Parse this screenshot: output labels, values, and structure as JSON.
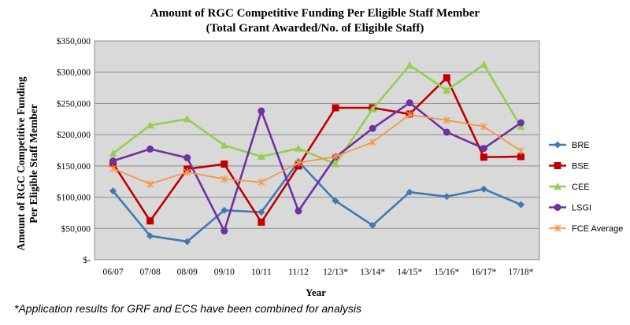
{
  "chart_data": {
    "type": "line",
    "title_lines": [
      "Amount of RGC Competitive Funding Per Eligible Staff Member",
      "(Total Grant Awarded/No. of Eligible Staff)"
    ],
    "xlabel": "Year",
    "ylabel_lines": [
      "Amount of RGC Competitive Funding",
      "Per Eligible Staff Member"
    ],
    "ylim": [
      0,
      350000
    ],
    "y_ticks": [
      "$-",
      "$50,000",
      "$100,000",
      "$150,000",
      "$200,000",
      "$250,000",
      "$300,000",
      "$350,000"
    ],
    "categories": [
      "06/07",
      "07/08",
      "08/09",
      "09/10",
      "10/11",
      "11/12",
      "12/13*",
      "13/14*",
      "14/15*",
      "15/16*",
      "16/17*",
      "17/18*"
    ],
    "grid": true,
    "legend_position": "right",
    "series": [
      {
        "name": "BRE",
        "color": "#3f79b5",
        "marker": "diamond",
        "values": [
          110000,
          38000,
          29000,
          79000,
          76000,
          157000,
          94000,
          55000,
          108000,
          101000,
          113000,
          88000
        ]
      },
      {
        "name": "BSE",
        "color": "#c00000",
        "marker": "square",
        "values": [
          154000,
          62000,
          145000,
          153000,
          60000,
          150000,
          243000,
          243000,
          233000,
          291000,
          164000,
          165000
        ]
      },
      {
        "name": "CEE",
        "color": "#92d050",
        "marker": "triangle",
        "values": [
          170000,
          215000,
          225000,
          183000,
          165000,
          178000,
          153000,
          241000,
          311000,
          271000,
          312000,
          213000
        ]
      },
      {
        "name": "LSGI",
        "color": "#7030a0",
        "marker": "circle",
        "values": [
          158000,
          177000,
          163000,
          46000,
          238000,
          78000,
          164000,
          210000,
          251000,
          204000,
          178000,
          219000
        ]
      },
      {
        "name": "FCE Average",
        "color": "#f79646",
        "marker": "star",
        "values": [
          146000,
          121000,
          140000,
          129000,
          124000,
          155000,
          165000,
          188000,
          232000,
          223000,
          213000,
          174000
        ]
      }
    ]
  },
  "footnote": "*Application results for GRF and ECS have been combined for analysis"
}
